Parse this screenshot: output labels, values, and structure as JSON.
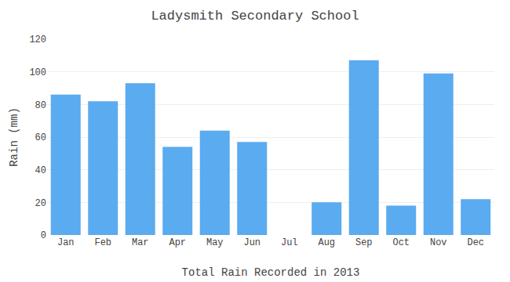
{
  "chart_data": {
    "type": "bar",
    "title": "Ladysmith Secondary School",
    "xlabel": "Total Rain Recorded in 2013",
    "ylabel": "Rain (mm)",
    "categories": [
      "Jan",
      "Feb",
      "Mar",
      "Apr",
      "May",
      "Jun",
      "Jul",
      "Aug",
      "Sep",
      "Oct",
      "Nov",
      "Dec"
    ],
    "values": [
      86,
      82,
      93,
      54,
      64,
      57,
      0,
      20,
      107,
      18,
      99,
      22
    ],
    "color": "#5aabf0",
    "ylim": [
      0,
      120
    ],
    "yticks": [
      0,
      20,
      40,
      60,
      80,
      100,
      120
    ],
    "grid": true
  }
}
